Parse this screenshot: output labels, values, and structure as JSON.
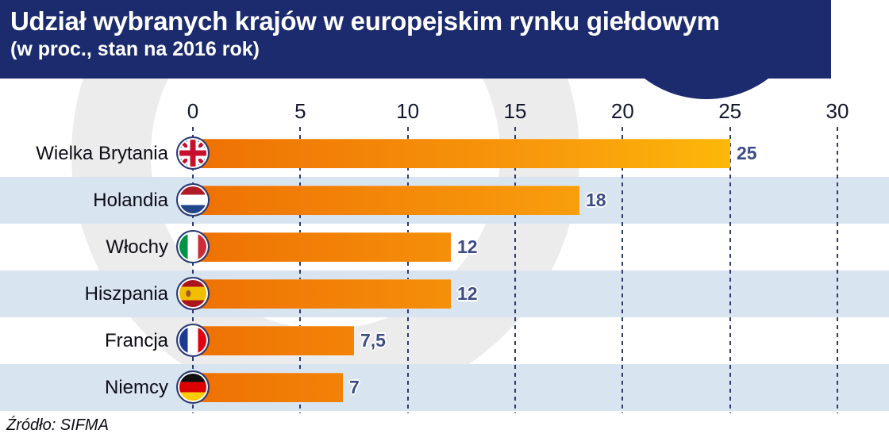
{
  "header": {
    "title": "Udział wybranych krajów w europejskim rynku giełdowym",
    "subtitle": "(w proc., stan na 2016 rok)"
  },
  "source_note": "Źródło: SIFMA",
  "chart_data": {
    "type": "bar",
    "orientation": "horizontal",
    "title": "Udział wybranych krajów w europejskim rynku giełdowym",
    "subtitle": "(w proc., stan na 2016 rok)",
    "categories": [
      "Wielka Brytania",
      "Holandia",
      "Włochy",
      "Hiszpania",
      "Francja",
      "Niemcy"
    ],
    "values": [
      25,
      18,
      12,
      12,
      7.5,
      7
    ],
    "value_labels": [
      "25",
      "18",
      "12",
      "12",
      "7,5",
      "7"
    ],
    "flags": [
      "gb",
      "nl",
      "it",
      "es",
      "fr",
      "de"
    ],
    "axis_ticks": [
      0,
      5,
      10,
      15,
      20,
      25,
      30
    ],
    "xlim": [
      0,
      30
    ],
    "grid": "dashed-vertical",
    "legend": "none",
    "source": "Źródło: SIFMA"
  },
  "colors": {
    "header_bg": "#1c2b6d",
    "stripe": "#d9e4f1",
    "bar_gradient_start": "#ee7103",
    "bar_gradient_end": "#ffc907",
    "gridline": "#2e3c6e",
    "value_label": "#3d4c86",
    "watermark": "#ececec"
  }
}
